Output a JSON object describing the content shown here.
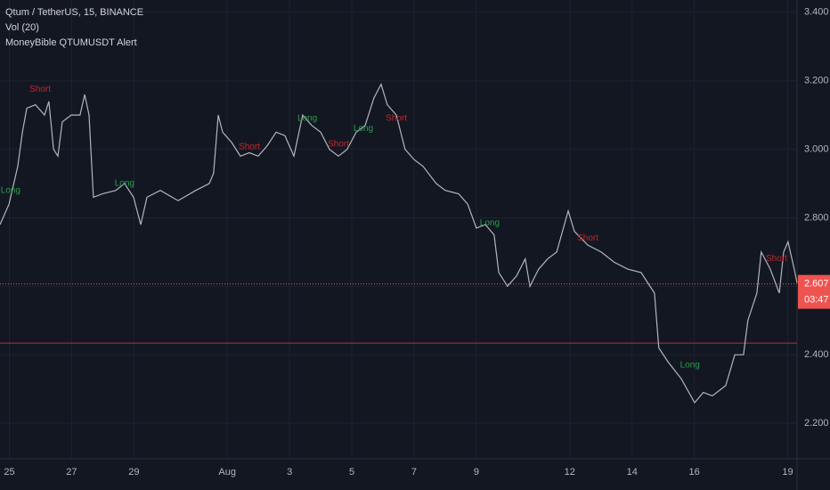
{
  "chart_data": {
    "type": "line",
    "title": "Qtum / TetherUS, 15, BINANCE",
    "indicators": [
      "Vol (20)",
      "MoneyBible QTUMUSDT Alert"
    ],
    "color": "#b2b5be",
    "grid": true,
    "xlim": [
      -0.3,
      25.3
    ],
    "xticks": [
      {
        "value": 0,
        "label": "25"
      },
      {
        "value": 2,
        "label": "27"
      },
      {
        "value": 4,
        "label": "29"
      },
      {
        "value": 7,
        "label": "Aug"
      },
      {
        "value": 9,
        "label": "3"
      },
      {
        "value": 11,
        "label": "5"
      },
      {
        "value": 13,
        "label": "7"
      },
      {
        "value": 15,
        "label": "9"
      },
      {
        "value": 18,
        "label": "12"
      },
      {
        "value": 20,
        "label": "14"
      },
      {
        "value": 22,
        "label": "16"
      },
      {
        "value": 25,
        "label": "19"
      }
    ],
    "ylim": [
      2.044,
      3.436
    ],
    "yticks": [
      {
        "value": 2.2,
        "label": "2.200"
      },
      {
        "value": 2.4,
        "label": "2.400"
      },
      {
        "value": 2.6,
        "label": "2.600"
      },
      {
        "value": 2.8,
        "label": "2.800"
      },
      {
        "value": 3.0,
        "label": "3.000"
      },
      {
        "value": 3.2,
        "label": "3.200"
      },
      {
        "value": 3.4,
        "label": "3.400"
      }
    ],
    "x": [
      -0.3,
      -0.01,
      0.27,
      0.42,
      0.56,
      0.84,
      1.13,
      1.27,
      1.42,
      1.56,
      1.7,
      1.99,
      2.27,
      2.42,
      2.56,
      2.7,
      2.99,
      3.42,
      3.7,
      3.99,
      4.22,
      4.42,
      4.85,
      5.42,
      5.99,
      6.42,
      6.56,
      6.71,
      6.85,
      7.14,
      7.42,
      7.71,
      7.99,
      8.28,
      8.57,
      8.85,
      9.14,
      9.42,
      9.71,
      10.0,
      10.28,
      10.57,
      10.85,
      11.14,
      11.43,
      11.71,
      11.94,
      12.14,
      12.43,
      12.71,
      13.0,
      13.29,
      13.71,
      14.0,
      14.43,
      14.72,
      15.0,
      15.29,
      15.57,
      15.72,
      16.0,
      16.29,
      16.57,
      16.72,
      17.0,
      17.29,
      17.58,
      17.95,
      18.15,
      18.58,
      19.01,
      19.43,
      19.86,
      20.29,
      20.72,
      20.86,
      21.15,
      21.58,
      22.01,
      22.29,
      22.58,
      23.01,
      23.3,
      23.58,
      23.72,
      24.01,
      24.15,
      24.44,
      24.73,
      24.87,
      25.01,
      25.21,
      25.3
    ],
    "values": [
      2.78,
      2.84,
      2.95,
      3.05,
      3.12,
      3.13,
      3.1,
      3.14,
      3.0,
      2.98,
      3.08,
      3.1,
      3.1,
      3.16,
      3.1,
      2.86,
      2.87,
      2.88,
      2.9,
      2.86,
      2.78,
      2.86,
      2.88,
      2.85,
      2.88,
      2.9,
      2.93,
      3.1,
      3.05,
      3.02,
      2.98,
      2.99,
      2.98,
      3.01,
      3.05,
      3.04,
      2.98,
      3.1,
      3.07,
      3.05,
      3.0,
      2.98,
      3.0,
      3.05,
      3.07,
      3.15,
      3.19,
      3.13,
      3.1,
      3.0,
      2.97,
      2.95,
      2.9,
      2.88,
      2.87,
      2.84,
      2.77,
      2.78,
      2.75,
      2.64,
      2.6,
      2.63,
      2.68,
      2.6,
      2.65,
      2.68,
      2.7,
      2.82,
      2.76,
      2.72,
      2.7,
      2.67,
      2.65,
      2.64,
      2.58,
      2.42,
      2.38,
      2.33,
      2.26,
      2.29,
      2.28,
      2.31,
      2.4,
      2.4,
      2.5,
      2.58,
      2.7,
      2.65,
      2.58,
      2.7,
      2.73,
      2.65,
      2.61
    ],
    "annotations": [
      {
        "text": "Short",
        "x": 0.99,
        "y": 3.175,
        "color": "#c0272d"
      },
      {
        "text": "Short",
        "x": 7.71,
        "y": 3.007,
        "color": "#c0272d"
      },
      {
        "text": "Short",
        "x": 10.57,
        "y": 3.015,
        "color": "#c0272d"
      },
      {
        "text": "Short",
        "x": 12.43,
        "y": 3.09,
        "color": "#c0272d"
      },
      {
        "text": "Short",
        "x": 18.58,
        "y": 2.74,
        "color": "#c0272d"
      },
      {
        "text": "Short",
        "x": 24.64,
        "y": 2.68,
        "color": "#c0272d"
      },
      {
        "text": "Long",
        "x": 0.04,
        "y": 2.88,
        "color": "#2a9d4a"
      },
      {
        "text": "Long",
        "x": 3.7,
        "y": 2.9,
        "color": "#2a9d4a"
      },
      {
        "text": "Long",
        "x": 9.57,
        "y": 3.09,
        "color": "#2a9d4a"
      },
      {
        "text": "Long",
        "x": 11.37,
        "y": 3.06,
        "color": "#2a9d4a"
      },
      {
        "text": "Long",
        "x": 15.43,
        "y": 2.785,
        "color": "#2a9d4a"
      },
      {
        "text": "Long",
        "x": 21.86,
        "y": 2.37,
        "color": "#2a9d4a"
      }
    ],
    "hline": 2.434,
    "hline_color": "#a8373c",
    "last_price": {
      "value": 2.607,
      "label": "2.607"
    },
    "countdown": "03:47",
    "price_box_color": "#ef5350"
  }
}
